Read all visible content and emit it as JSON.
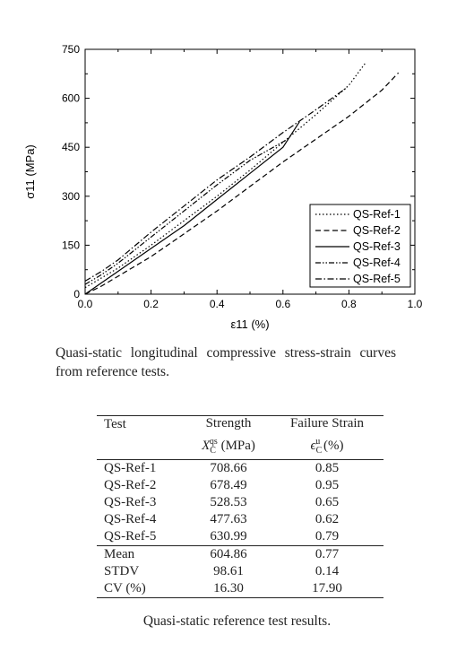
{
  "figure": {
    "caption": "Quasi-static longitudinal compressive stress-strain curves from reference tests."
  },
  "chart_data": {
    "type": "line",
    "xlabel": "ε11 (%)",
    "ylabel": "σ11 (MPa)",
    "xlim": [
      0.0,
      1.0
    ],
    "ylim": [
      0,
      750
    ],
    "xticks": [
      "0.0",
      "0.2",
      "0.4",
      "0.6",
      "0.8",
      "1.0"
    ],
    "yticks": [
      "0",
      "150",
      "300",
      "450",
      "600",
      "750"
    ],
    "legend_position": "bottom-right",
    "grid": false,
    "series": [
      {
        "name": "QS-Ref-1",
        "style": "dotted",
        "x": [
          0.0,
          0.05,
          0.1,
          0.2,
          0.3,
          0.4,
          0.5,
          0.6,
          0.7,
          0.8,
          0.85
        ],
        "y": [
          20,
          50,
          80,
          150,
          225,
          300,
          380,
          465,
          550,
          640,
          708
        ]
      },
      {
        "name": "QS-Ref-2",
        "style": "dashed",
        "x": [
          0.0,
          0.05,
          0.1,
          0.2,
          0.3,
          0.4,
          0.5,
          0.6,
          0.7,
          0.8,
          0.9,
          0.95
        ],
        "y": [
          0,
          25,
          55,
          115,
          185,
          255,
          330,
          405,
          475,
          545,
          625,
          678
        ]
      },
      {
        "name": "QS-Ref-3",
        "style": "solid",
        "x": [
          0.0,
          0.05,
          0.1,
          0.2,
          0.3,
          0.4,
          0.5,
          0.6,
          0.65
        ],
        "y": [
          0,
          35,
          70,
          140,
          210,
          290,
          370,
          450,
          528
        ]
      },
      {
        "name": "QS-Ref-4",
        "style": "dash-dot-dot",
        "x": [
          0.0,
          0.05,
          0.1,
          0.2,
          0.3,
          0.4,
          0.5,
          0.62
        ],
        "y": [
          30,
          60,
          95,
          175,
          255,
          335,
          410,
          478
        ]
      },
      {
        "name": "QS-Ref-5",
        "style": "dash-dot",
        "x": [
          0.0,
          0.05,
          0.1,
          0.2,
          0.3,
          0.4,
          0.5,
          0.6,
          0.7,
          0.79
        ],
        "y": [
          40,
          70,
          105,
          190,
          270,
          350,
          420,
          495,
          565,
          630
        ]
      }
    ]
  },
  "table": {
    "caption": "Quasi-static reference test results.",
    "headers": {
      "test": "Test",
      "strength": "Strength",
      "strength_sym": "X",
      "strength_sup": "qs",
      "strength_sub": "C",
      "strength_unit": "(MPa)",
      "strain": "Failure Strain",
      "strain_sym": "ϵ",
      "strain_sup": "u",
      "strain_sub": "C",
      "strain_unit": "(%)"
    },
    "rows": [
      {
        "test": "QS-Ref-1",
        "strength": "708.66",
        "strain": "0.85"
      },
      {
        "test": "QS-Ref-2",
        "strength": "678.49",
        "strain": "0.95"
      },
      {
        "test": "QS-Ref-3",
        "strength": "528.53",
        "strain": "0.65"
      },
      {
        "test": "QS-Ref-4",
        "strength": "477.63",
        "strain": "0.62"
      },
      {
        "test": "QS-Ref-5",
        "strength": "630.99",
        "strain": "0.79"
      }
    ],
    "stats": [
      {
        "test": "Mean",
        "strength": "604.86",
        "strain": "0.77"
      },
      {
        "test": "STDV",
        "strength": "98.61",
        "strain": "0.14"
      },
      {
        "test": "CV (%)",
        "strength": "16.30",
        "strain": "17.90"
      }
    ]
  }
}
